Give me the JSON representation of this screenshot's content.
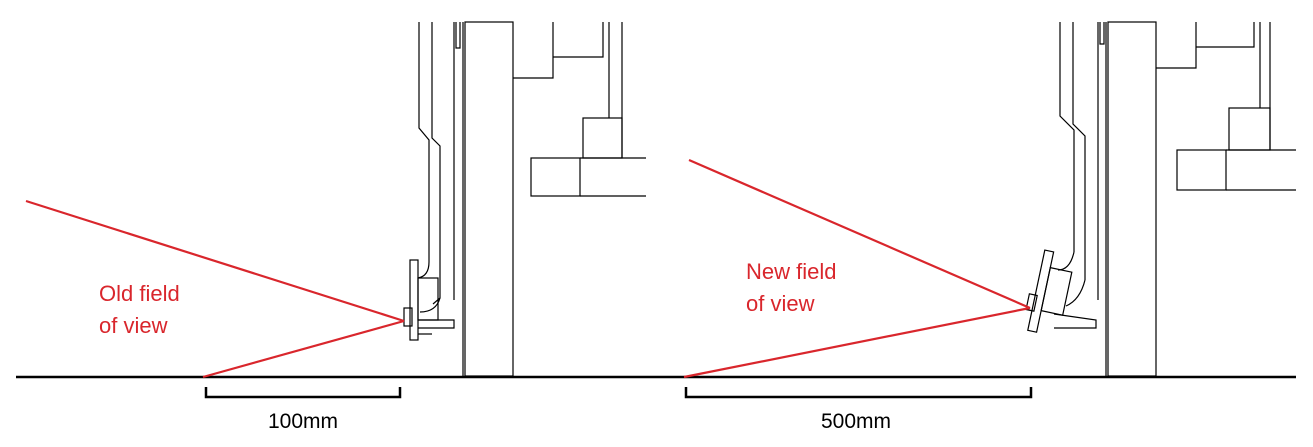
{
  "panels": [
    {
      "label_line1": "Old field",
      "label_line2": "of view",
      "dimension": "100mm"
    },
    {
      "label_line1": "New field",
      "label_line2": "of view",
      "dimension": "500mm"
    }
  ],
  "colors": {
    "field_of_view": "#d9262c",
    "structure": "#000000",
    "background": "#ffffff"
  }
}
